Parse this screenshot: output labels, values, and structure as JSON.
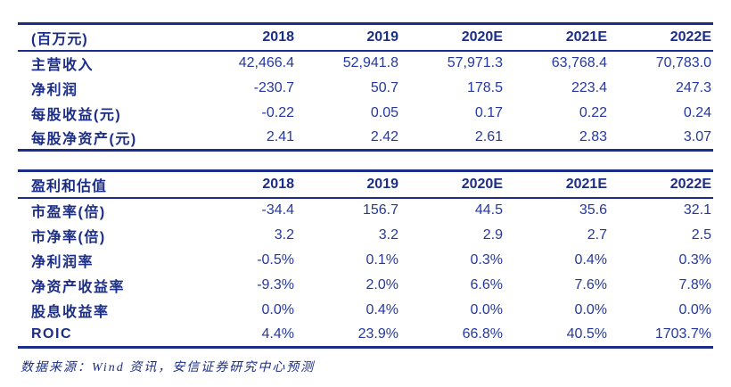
{
  "colors": {
    "navy": "#1b2d87",
    "value-blue": "#2438a0",
    "bg": "#ffffff"
  },
  "table1": {
    "unit_label": "(百万元)",
    "columns": [
      "2018",
      "2019",
      "2020E",
      "2021E",
      "2022E"
    ],
    "rows": [
      {
        "label": "主营收入",
        "values": [
          "42,466.4",
          "52,941.8",
          "57,971.3",
          "63,768.4",
          "70,783.0"
        ]
      },
      {
        "label": "净利润",
        "values": [
          "-230.7",
          "50.7",
          "178.5",
          "223.4",
          "247.3"
        ]
      },
      {
        "label": "每股收益(元)",
        "values": [
          "-0.22",
          "0.05",
          "0.17",
          "0.22",
          "0.24"
        ]
      },
      {
        "label": "每股净资产(元)",
        "values": [
          "2.41",
          "2.42",
          "2.61",
          "2.83",
          "3.07"
        ]
      }
    ]
  },
  "table2": {
    "title": "盈利和估值",
    "columns": [
      "2018",
      "2019",
      "2020E",
      "2021E",
      "2022E"
    ],
    "rows": [
      {
        "label": "市盈率(倍)",
        "values": [
          "-34.4",
          "156.7",
          "44.5",
          "35.6",
          "32.1"
        ]
      },
      {
        "label": "市净率(倍)",
        "values": [
          "3.2",
          "3.2",
          "2.9",
          "2.7",
          "2.5"
        ]
      },
      {
        "label": "净利润率",
        "values": [
          "-0.5%",
          "0.1%",
          "0.3%",
          "0.4%",
          "0.3%"
        ]
      },
      {
        "label": "净资产收益率",
        "values": [
          "-9.3%",
          "2.0%",
          "6.6%",
          "7.6%",
          "7.8%"
        ]
      },
      {
        "label": "股息收益率",
        "values": [
          "0.0%",
          "0.4%",
          "0.0%",
          "0.0%",
          "0.0%"
        ]
      },
      {
        "label": "ROIC",
        "values": [
          "4.4%",
          "23.9%",
          "66.8%",
          "40.5%",
          "1703.7%"
        ]
      }
    ]
  },
  "footer": {
    "source_note": "数据来源：Wind 资讯，安信证券研究中心预测"
  }
}
